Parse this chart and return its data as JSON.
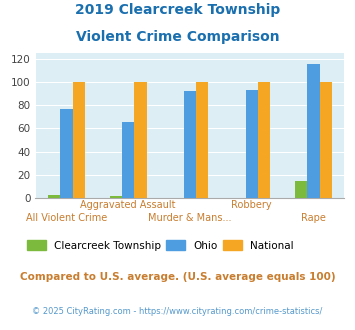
{
  "title_line1": "2019 Clearcreek Township",
  "title_line2": "Violent Crime Comparison",
  "categories": [
    "All Violent Crime",
    "Aggravated Assault",
    "Murder & Mans...",
    "Robbery",
    "Rape"
  ],
  "series": {
    "Clearcreek Township": [
      3,
      2,
      0,
      0,
      15
    ],
    "Ohio": [
      77,
      65,
      92,
      93,
      115
    ],
    "National": [
      100,
      100,
      100,
      100,
      100
    ]
  },
  "colors": {
    "Clearcreek Township": "#7cba3d",
    "Ohio": "#4d9de0",
    "National": "#f5a623"
  },
  "ylim": [
    0,
    125
  ],
  "yticks": [
    0,
    20,
    40,
    60,
    80,
    100,
    120
  ],
  "background_color": "#ddeef5",
  "title_color": "#1a6faf",
  "xlabel_color": "#c87d2f",
  "footnote1": "Compared to U.S. average. (U.S. average equals 100)",
  "footnote2": "© 2025 CityRating.com - https://www.cityrating.com/crime-statistics/",
  "footnote1_color": "#c87d2f",
  "footnote2_color": "#5599cc"
}
